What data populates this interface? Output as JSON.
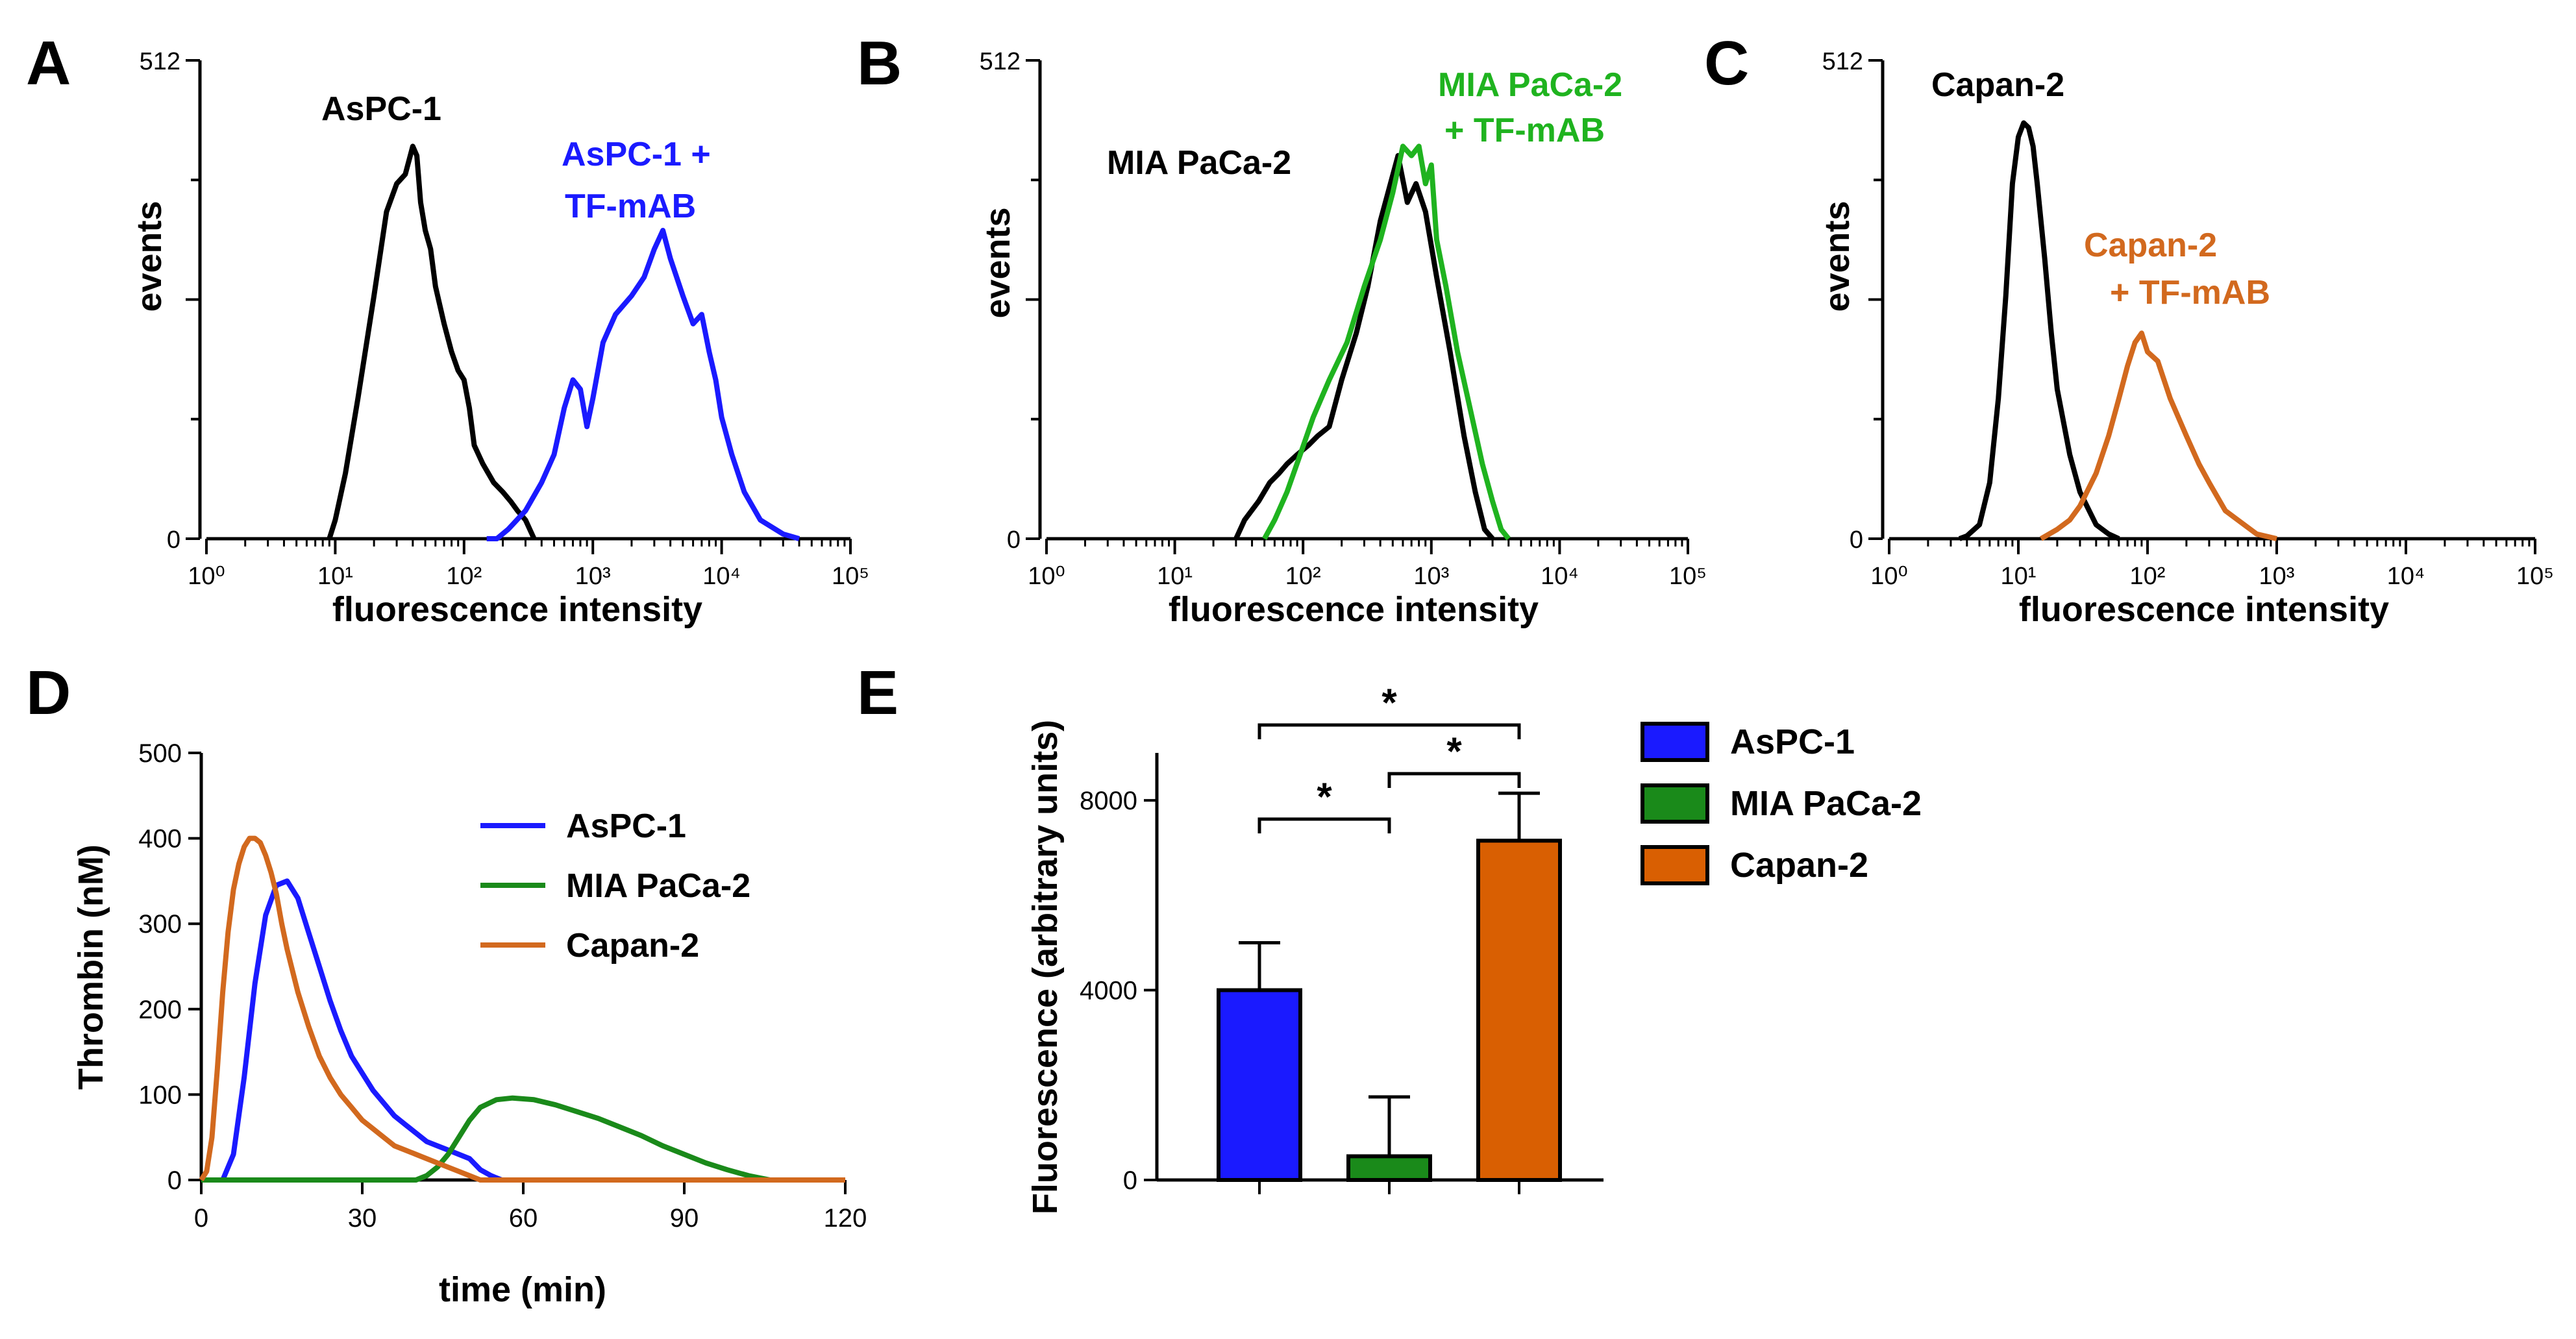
{
  "colors": {
    "black": "#000000",
    "aspc1": "#1a1aff",
    "mia": "#1fb31f",
    "mia_dark": "#1a8a1a",
    "capan": "#d2691e",
    "capan_bar": "#d95f02"
  },
  "chart_data": [
    {
      "panel": "A",
      "type": "line",
      "title": "",
      "xlabel": "fluorescence intensity",
      "ylabel": "events",
      "xscale": "log",
      "xlim": [
        1,
        100000
      ],
      "ylim": [
        0,
        512
      ],
      "xtick_labels": [
        "10⁰",
        "10¹",
        "10²",
        "10³",
        "10⁴",
        "10⁵"
      ],
      "ytick_labels": [
        "0",
        "512"
      ],
      "annotations": [
        "AsPC-1",
        "AsPC-1 +",
        "TF-mAB"
      ],
      "series": [
        {
          "name": "AsPC-1",
          "color": "black",
          "points": [
            [
              9,
              0
            ],
            [
              10,
              20
            ],
            [
              12,
              70
            ],
            [
              15,
              150
            ],
            [
              20,
              260
            ],
            [
              25,
              350
            ],
            [
              30,
              380
            ],
            [
              35,
              390
            ],
            [
              40,
              420
            ],
            [
              43,
              410
            ],
            [
              46,
              360
            ],
            [
              50,
              330
            ],
            [
              55,
              310
            ],
            [
              60,
              270
            ],
            [
              70,
              230
            ],
            [
              80,
              200
            ],
            [
              90,
              180
            ],
            [
              100,
              170
            ],
            [
              110,
              140
            ],
            [
              120,
              100
            ],
            [
              140,
              80
            ],
            [
              170,
              60
            ],
            [
              200,
              50
            ],
            [
              230,
              40
            ],
            [
              260,
              30
            ],
            [
              300,
              20
            ],
            [
              350,
              0
            ]
          ]
        },
        {
          "name": "AsPC-1 + TF-mAB",
          "color": "aspc1",
          "points": [
            [
              150,
              0
            ],
            [
              180,
              0
            ],
            [
              220,
              10
            ],
            [
              300,
              30
            ],
            [
              400,
              60
            ],
            [
              500,
              90
            ],
            [
              600,
              140
            ],
            [
              700,
              170
            ],
            [
              800,
              160
            ],
            [
              900,
              120
            ],
            [
              1000,
              150
            ],
            [
              1200,
              210
            ],
            [
              1500,
              240
            ],
            [
              2000,
              260
            ],
            [
              2500,
              280
            ],
            [
              3000,
              310
            ],
            [
              3500,
              330
            ],
            [
              4000,
              300
            ],
            [
              5000,
              260
            ],
            [
              6000,
              230
            ],
            [
              7000,
              240
            ],
            [
              8000,
              200
            ],
            [
              9000,
              170
            ],
            [
              10000,
              130
            ],
            [
              12000,
              90
            ],
            [
              15000,
              50
            ],
            [
              20000,
              20
            ],
            [
              30000,
              5
            ],
            [
              40000,
              0
            ]
          ]
        }
      ]
    },
    {
      "panel": "B",
      "type": "line",
      "title": "",
      "xlabel": "fluorescence intensity",
      "ylabel": "events",
      "xscale": "log",
      "xlim": [
        1,
        100000
      ],
      "ylim": [
        0,
        512
      ],
      "xtick_labels": [
        "10⁰",
        "10¹",
        "10²",
        "10³",
        "10⁴",
        "10⁵"
      ],
      "ytick_labels": [
        "0",
        "512"
      ],
      "annotations": [
        "MIA PaCa-2",
        "MIA PaCa-2",
        "+ TF-mAB"
      ],
      "series": [
        {
          "name": "MIA PaCa-2",
          "color": "black",
          "points": [
            [
              30,
              0
            ],
            [
              35,
              20
            ],
            [
              45,
              40
            ],
            [
              55,
              60
            ],
            [
              65,
              70
            ],
            [
              75,
              80
            ],
            [
              90,
              90
            ],
            [
              110,
              100
            ],
            [
              130,
              110
            ],
            [
              160,
              120
            ],
            [
              200,
              170
            ],
            [
              260,
              220
            ],
            [
              320,
              270
            ],
            [
              400,
              340
            ],
            [
              480,
              380
            ],
            [
              550,
              410
            ],
            [
              650,
              360
            ],
            [
              760,
              380
            ],
            [
              900,
              350
            ],
            [
              1100,
              280
            ],
            [
              1400,
              200
            ],
            [
              1800,
              110
            ],
            [
              2200,
              50
            ],
            [
              2600,
              10
            ],
            [
              3000,
              0
            ]
          ]
        },
        {
          "name": "MIA PaCa-2 + TF-mAB",
          "color": "mia",
          "points": [
            [
              50,
              0
            ],
            [
              60,
              20
            ],
            [
              75,
              50
            ],
            [
              95,
              90
            ],
            [
              120,
              130
            ],
            [
              160,
              170
            ],
            [
              220,
              210
            ],
            [
              300,
              270
            ],
            [
              400,
              320
            ],
            [
              500,
              370
            ],
            [
              600,
              420
            ],
            [
              700,
              410
            ],
            [
              800,
              420
            ],
            [
              900,
              380
            ],
            [
              1000,
              400
            ],
            [
              1100,
              320
            ],
            [
              1300,
              270
            ],
            [
              1600,
              200
            ],
            [
              2000,
              140
            ],
            [
              2500,
              80
            ],
            [
              3000,
              40
            ],
            [
              3500,
              10
            ],
            [
              4000,
              0
            ]
          ]
        }
      ]
    },
    {
      "panel": "C",
      "type": "line",
      "title": "",
      "xlabel": "fluorescence intensity",
      "ylabel": "events",
      "xscale": "log",
      "xlim": [
        1,
        100000
      ],
      "ylim": [
        0,
        512
      ],
      "xtick_labels": [
        "10⁰",
        "10¹",
        "10²",
        "10³",
        "10⁴",
        "10⁵"
      ],
      "ytick_labels": [
        "0",
        "512"
      ],
      "annotations": [
        "Capan-2",
        "Capan-2",
        "+ TF-mAB"
      ],
      "series": [
        {
          "name": "Capan-2",
          "color": "black",
          "points": [
            [
              3.5,
              0
            ],
            [
              4,
              3
            ],
            [
              5,
              15
            ],
            [
              6,
              60
            ],
            [
              7,
              150
            ],
            [
              8,
              260
            ],
            [
              9,
              380
            ],
            [
              10,
              430
            ],
            [
              11,
              445
            ],
            [
              12,
              440
            ],
            [
              13,
              420
            ],
            [
              14,
              380
            ],
            [
              16,
              300
            ],
            [
              18,
              220
            ],
            [
              20,
              160
            ],
            [
              25,
              90
            ],
            [
              30,
              50
            ],
            [
              40,
              15
            ],
            [
              50,
              5
            ],
            [
              60,
              0
            ]
          ]
        },
        {
          "name": "Capan-2 + TF-mAB",
          "color": "capan",
          "points": [
            [
              15,
              0
            ],
            [
              20,
              10
            ],
            [
              25,
              20
            ],
            [
              30,
              35
            ],
            [
              40,
              70
            ],
            [
              50,
              110
            ],
            [
              60,
              150
            ],
            [
              70,
              185
            ],
            [
              80,
              210
            ],
            [
              90,
              220
            ],
            [
              100,
              200
            ],
            [
              120,
              190
            ],
            [
              150,
              150
            ],
            [
              200,
              110
            ],
            [
              250,
              80
            ],
            [
              300,
              60
            ],
            [
              400,
              30
            ],
            [
              500,
              20
            ],
            [
              700,
              5
            ],
            [
              1000,
              0
            ]
          ]
        }
      ]
    },
    {
      "panel": "D",
      "type": "line",
      "title": "",
      "xlabel": "time (min)",
      "ylabel": "Thrombin (nM)",
      "xlim": [
        0,
        120
      ],
      "ylim": [
        0,
        500
      ],
      "xticks": [
        0,
        30,
        60,
        90,
        120
      ],
      "yticks": [
        0,
        100,
        200,
        300,
        400,
        500
      ],
      "legend": "top-right",
      "series": [
        {
          "name": "AsPC-1",
          "color": "aspc1",
          "x": [
            0,
            4,
            6,
            8,
            10,
            12,
            14,
            16,
            18,
            20,
            22,
            24,
            26,
            28,
            30,
            32,
            34,
            36,
            38,
            40,
            42,
            44,
            46,
            48,
            50,
            52,
            54,
            56,
            60,
            120
          ],
          "y": [
            0,
            0,
            30,
            120,
            230,
            310,
            345,
            350,
            330,
            290,
            250,
            210,
            175,
            145,
            125,
            105,
            90,
            75,
            65,
            55,
            45,
            40,
            35,
            30,
            25,
            12,
            5,
            0,
            0,
            0
          ]
        },
        {
          "name": "MIA PaCa-2",
          "color": "mia_dark",
          "x": [
            0,
            40,
            42,
            44,
            46,
            48,
            50,
            52,
            55,
            58,
            62,
            66,
            70,
            74,
            78,
            82,
            86,
            90,
            94,
            98,
            102,
            106,
            120
          ],
          "y": [
            0,
            0,
            5,
            15,
            30,
            50,
            70,
            85,
            94,
            96,
            94,
            88,
            80,
            72,
            62,
            52,
            40,
            30,
            20,
            12,
            5,
            0,
            0
          ]
        },
        {
          "name": "Capan-2",
          "color": "capan",
          "x": [
            0,
            1,
            2,
            3,
            4,
            5,
            6,
            7,
            8,
            9,
            10,
            11,
            12,
            13,
            14,
            15,
            16,
            18,
            20,
            22,
            24,
            26,
            28,
            30,
            32,
            34,
            36,
            38,
            40,
            42,
            44,
            46,
            48,
            50,
            52,
            120
          ],
          "y": [
            0,
            10,
            50,
            130,
            220,
            290,
            340,
            370,
            390,
            400,
            400,
            395,
            380,
            360,
            335,
            300,
            270,
            220,
            180,
            145,
            120,
            100,
            85,
            70,
            60,
            50,
            40,
            35,
            30,
            25,
            20,
            15,
            10,
            5,
            0,
            0
          ]
        }
      ]
    },
    {
      "panel": "E",
      "type": "bar",
      "title": "",
      "xlabel": "",
      "ylabel": "Fluorescence (arbitrary units)",
      "ylim": [
        0,
        9000
      ],
      "yticks": [
        0,
        4000,
        8000
      ],
      "legend": "right",
      "categories": [
        "AsPC-1",
        "MIA PaCa-2",
        "Capan-2"
      ],
      "values": [
        4000,
        500,
        7150
      ],
      "errors": [
        1000,
        1250,
        1000
      ],
      "bar_colors": [
        "aspc1",
        "mia_dark",
        "capan_bar"
      ],
      "significance": [
        {
          "pair": [
            0,
            1
          ],
          "label": "*"
        },
        {
          "pair": [
            1,
            2
          ],
          "label": "*"
        },
        {
          "pair": [
            0,
            2
          ],
          "label": "*"
        }
      ]
    }
  ]
}
